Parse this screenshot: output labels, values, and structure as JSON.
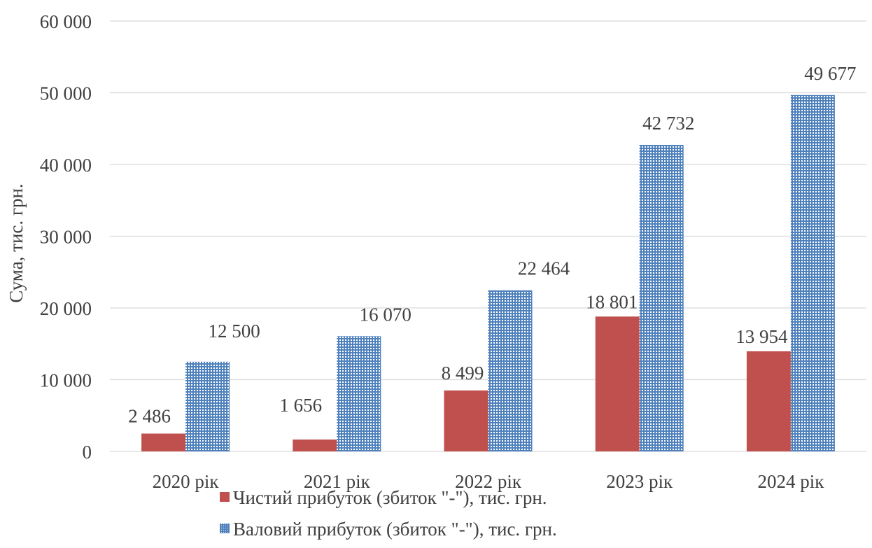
{
  "chart_data": {
    "type": "bar",
    "categories": [
      "2020 рік",
      "2021 рік",
      "2022 рік",
      "2023 рік",
      "2024 рік"
    ],
    "series": [
      {
        "name": "Чистий прибуток (збиток \"-\"), тис. грн.",
        "values": [
          2486,
          1656,
          8499,
          18801,
          13954
        ],
        "labels": [
          "2 486",
          "1 656",
          "8 499",
          "18 801",
          "13 954"
        ],
        "color": "#C0504D",
        "pattern": "solid"
      },
      {
        "name": "Валовий прибуток (збиток \"-\"), тис. грн.",
        "values": [
          12500,
          16070,
          22464,
          42732,
          49677
        ],
        "labels": [
          "12 500",
          "16 070",
          "22 464",
          "42 732",
          "49 677"
        ],
        "color": "#4F81BD",
        "pattern": "dotted-grid"
      }
    ],
    "ylabel": "Сума, тис. грн.",
    "ylim": [
      0,
      60000
    ],
    "yticks": [
      0,
      10000,
      20000,
      30000,
      40000,
      50000,
      60000
    ],
    "ytick_labels": [
      "0",
      "10 000",
      "20 000",
      "30 000",
      "40 000",
      "50 000",
      "60 000"
    ],
    "grid": true,
    "legend_position": "bottom"
  }
}
